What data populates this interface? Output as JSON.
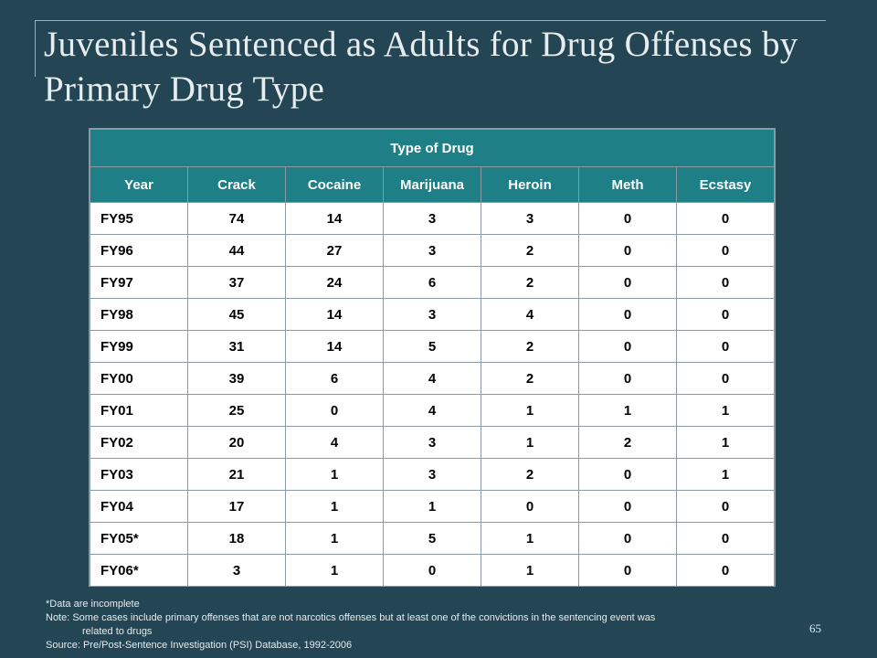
{
  "slide": {
    "title": "Juveniles Sentenced as Adults for Drug Offenses by Primary Drug Type",
    "page_number": "65"
  },
  "table": {
    "group_header": "Type of Drug",
    "columns": [
      "Year",
      "Crack",
      "Cocaine",
      "Marijuana",
      "Heroin",
      "Meth",
      "Ecstasy"
    ],
    "rows": [
      [
        "FY95",
        "74",
        "14",
        "3",
        "3",
        "0",
        "0"
      ],
      [
        "FY96",
        "44",
        "27",
        "3",
        "2",
        "0",
        "0"
      ],
      [
        "FY97",
        "37",
        "24",
        "6",
        "2",
        "0",
        "0"
      ],
      [
        "FY98",
        "45",
        "14",
        "3",
        "4",
        "0",
        "0"
      ],
      [
        "FY99",
        "31",
        "14",
        "5",
        "2",
        "0",
        "0"
      ],
      [
        "FY00",
        "39",
        "6",
        "4",
        "2",
        "0",
        "0"
      ],
      [
        "FY01",
        "25",
        "0",
        "4",
        "1",
        "1",
        "1"
      ],
      [
        "FY02",
        "20",
        "4",
        "3",
        "1",
        "2",
        "1"
      ],
      [
        "FY03",
        "21",
        "1",
        "3",
        "2",
        "0",
        "1"
      ],
      [
        "FY04",
        "17",
        "1",
        "1",
        "0",
        "0",
        "0"
      ],
      [
        "FY05*",
        "18",
        "1",
        "5",
        "1",
        "0",
        "0"
      ],
      [
        "FY06*",
        "3",
        "1",
        "0",
        "1",
        "0",
        "0"
      ]
    ]
  },
  "footnotes": {
    "incomplete": "*Data are incomplete",
    "note_line1": "Note: Some cases include primary offenses that are not narcotics offenses but at least one of the convictions in the sentencing event was",
    "note_line2": "related to drugs",
    "source": "Source:  Pre/Post-Sentence Investigation (PSI) Database, 1992-2006"
  },
  "colors": {
    "background": "#244553",
    "header_fill": "#1f7f86",
    "rule": "#8fb2c6"
  }
}
